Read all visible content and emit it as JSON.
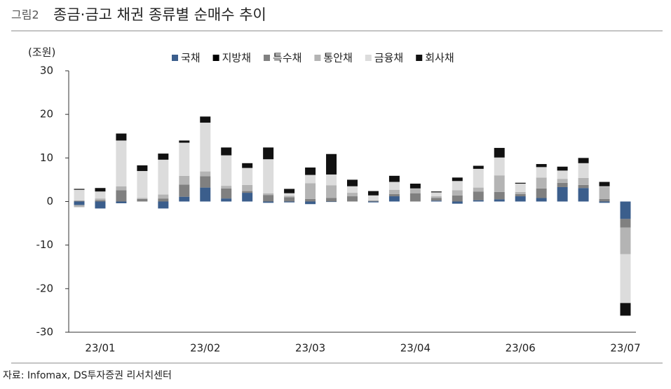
{
  "figure_label": "그림2",
  "chart_data": {
    "type": "stacked_bar",
    "title": "종금·금고 채권 종류별 순매수 추이",
    "unit_label": "(조원)",
    "source": "자료: Infomax, DS투자증권 리서치센터",
    "categories": [
      null,
      "23/01",
      null,
      null,
      null,
      null,
      "23/02",
      null,
      null,
      null,
      null,
      "23/03",
      null,
      null,
      null,
      null,
      "23/04",
      null,
      null,
      null,
      null,
      "23/06",
      null,
      null,
      null,
      null,
      "23/07"
    ],
    "ylim": [
      -30,
      30
    ],
    "yticks": [
      -30,
      -20,
      -10,
      0,
      10,
      20,
      30
    ],
    "grid": false,
    "legend": "top",
    "series": [
      {
        "name": "국채",
        "color": "#3b5e8c",
        "values": [
          -0.8,
          -1.6,
          -0.4,
          0,
          -1.6,
          1.1,
          3.2,
          0.7,
          2,
          -0.3,
          -0.2,
          -0.6,
          -0.1,
          0,
          -0.2,
          1.2,
          0,
          0.2,
          -0.5,
          0.3,
          0.5,
          1.2,
          0.8,
          3.3,
          3.1,
          -0.3,
          -4.0
        ]
      },
      {
        "name": "지방채",
        "color": "#000000",
        "values": [
          0,
          0,
          0,
          0,
          0,
          0,
          0,
          0,
          0,
          0,
          0,
          0,
          0,
          0,
          0,
          0,
          0,
          0,
          0,
          0,
          0,
          0,
          0,
          0,
          0,
          0,
          0
        ]
      },
      {
        "name": "특수채",
        "color": "#808080",
        "values": [
          0.2,
          0.3,
          2.6,
          0.6,
          0.7,
          2.8,
          2.6,
          2.3,
          0.4,
          1.5,
          1,
          0.6,
          0.8,
          1.2,
          0.2,
          0.5,
          1.9,
          0.6,
          1.4,
          2,
          1.7,
          0.5,
          2.2,
          1.0,
          0.7,
          0.6,
          -2.0
        ]
      },
      {
        "name": "통안채",
        "color": "#b4b4b4",
        "values": [
          -0.5,
          0.4,
          0.9,
          0.2,
          0.9,
          2,
          1.1,
          0.6,
          1.4,
          0.4,
          0.3,
          3.6,
          2.9,
          0.8,
          0,
          1,
          1,
          0.4,
          1.2,
          0.9,
          3.8,
          0.5,
          2.5,
          0.9,
          1.6,
          2.8,
          -6.1
        ]
      },
      {
        "name": "금융채",
        "color": "#dcdcdc",
        "values": [
          2.5,
          1.6,
          10.5,
          6.2,
          8,
          7.6,
          11.2,
          7,
          3.9,
          7.8,
          0.6,
          1.9,
          2.5,
          1.5,
          1.2,
          1.8,
          0.1,
          0.9,
          2.1,
          4.3,
          4.1,
          1.9,
          2.4,
          1.9,
          3.4,
          0.1,
          -11.2
        ]
      },
      {
        "name": "회사채",
        "color": "#111111",
        "values": [
          0.2,
          0.8,
          1.6,
          1.3,
          1.4,
          0.5,
          1.4,
          1.8,
          1.1,
          2.7,
          1.0,
          1.7,
          4.7,
          1.5,
          1.0,
          1.4,
          1.1,
          0.2,
          0.8,
          0.7,
          2.2,
          0.2,
          0.7,
          0.9,
          1.2,
          1.0,
          -2.9
        ]
      }
    ]
  }
}
